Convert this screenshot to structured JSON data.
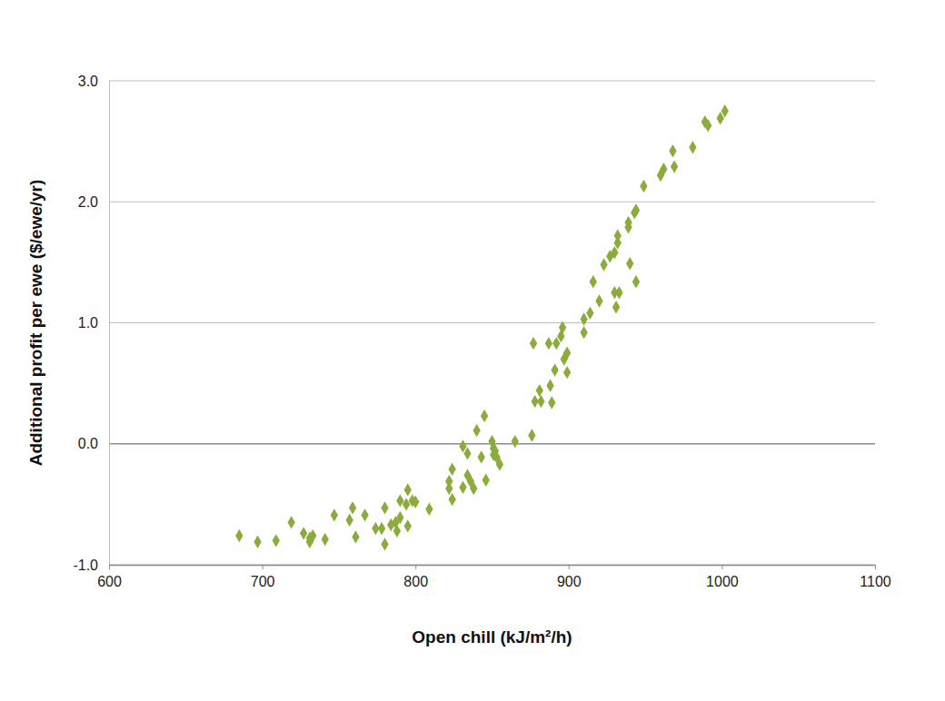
{
  "chart_data": {
    "type": "scatter",
    "x_label": "Open chill (kJ/m²/h)",
    "y_label": "Additional profit per ewe ($/ewe/yr)",
    "color": "#8bab3c",
    "marker": "diamond",
    "grid": true,
    "xlim": [
      600,
      1100
    ],
    "xticks": [
      600,
      700,
      800,
      900,
      1000,
      1100
    ],
    "ylim": [
      -1.0,
      3.0
    ],
    "yticks": [
      {
        "value": -1.0,
        "label": "-1.0"
      },
      {
        "value": 0.0,
        "label": "0.0"
      },
      {
        "value": 1.0,
        "label": "1.0"
      },
      {
        "value": 2.0,
        "label": "2.0"
      },
      {
        "value": 3.0,
        "label": "3.0"
      }
    ],
    "x": [
      685,
      697,
      709,
      719,
      727,
      731,
      731,
      733,
      741,
      747,
      757,
      759,
      761,
      767,
      774,
      778,
      780,
      780,
      784,
      787,
      788,
      790,
      790,
      794,
      795,
      795,
      798,
      800,
      809,
      822,
      822,
      824,
      824,
      831,
      831,
      834,
      834,
      836,
      838,
      840,
      843,
      845,
      846,
      850,
      851,
      851,
      852,
      853,
      855,
      865,
      876,
      877,
      878,
      881,
      882,
      887,
      888,
      889,
      891,
      892,
      895,
      896,
      897,
      899,
      899,
      910,
      910,
      914,
      916,
      920,
      923,
      927,
      930,
      930,
      931,
      932,
      932,
      933,
      939,
      939,
      940,
      943,
      944,
      944,
      949,
      960,
      962,
      968,
      969,
      981,
      989,
      991,
      999,
      1002
    ],
    "values": [
      -0.76,
      -0.81,
      -0.8,
      -0.65,
      -0.74,
      -0.81,
      -0.78,
      -0.76,
      -0.79,
      -0.59,
      -0.63,
      -0.53,
      -0.77,
      -0.59,
      -0.7,
      -0.7,
      -0.53,
      -0.83,
      -0.67,
      -0.65,
      -0.72,
      -0.61,
      -0.47,
      -0.5,
      -0.38,
      -0.68,
      -0.47,
      -0.48,
      -0.54,
      -0.31,
      -0.37,
      -0.21,
      -0.46,
      -0.02,
      -0.36,
      -0.08,
      -0.26,
      -0.31,
      -0.37,
      0.11,
      -0.11,
      0.23,
      -0.3,
      0.02,
      -0.04,
      -0.09,
      -0.06,
      -0.11,
      -0.17,
      0.02,
      0.07,
      0.83,
      0.35,
      0.44,
      0.35,
      0.83,
      0.48,
      0.34,
      0.61,
      0.83,
      0.89,
      0.96,
      0.7,
      0.75,
      0.59,
      1.03,
      0.92,
      1.08,
      1.34,
      1.18,
      1.48,
      1.55,
      1.25,
      1.58,
      1.13,
      1.72,
      1.66,
      1.25,
      1.83,
      1.79,
      1.49,
      1.91,
      1.93,
      1.34,
      2.13,
      2.22,
      2.27,
      2.42,
      2.29,
      2.45,
      2.66,
      2.63,
      2.69,
      2.75
    ]
  }
}
